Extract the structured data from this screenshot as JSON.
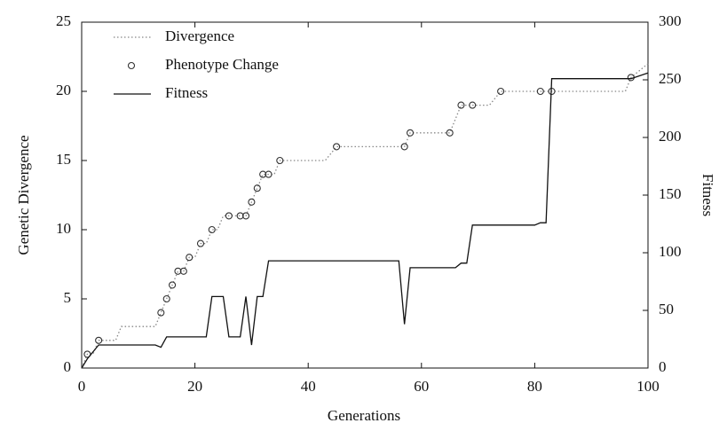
{
  "chart_data": {
    "type": "line",
    "x_label": "Generations",
    "y_label": "Genetic Divergence",
    "y2_label": "Fitness",
    "xlim": [
      0,
      100
    ],
    "xticks": [
      0,
      20,
      40,
      60,
      80,
      100
    ],
    "ylim": [
      0,
      25
    ],
    "yticks": [
      0,
      5,
      10,
      15,
      20,
      25
    ],
    "y2lim": [
      0,
      300
    ],
    "y2ticks": [
      0,
      50,
      100,
      150,
      200,
      250,
      300
    ],
    "legend": "upper left",
    "series": [
      {
        "name": "Divergence",
        "kind": "dotted",
        "color": "#888888",
        "x": [
          0,
          1,
          2,
          3,
          6,
          7,
          13,
          14,
          15,
          16,
          17,
          18,
          19,
          20,
          21,
          22,
          23,
          24,
          25,
          26,
          28,
          29,
          30,
          31,
          32,
          33,
          34,
          35,
          40,
          43,
          45,
          57,
          58,
          64,
          65,
          66,
          67,
          68,
          69,
          70,
          71,
          72,
          74,
          80,
          81,
          83,
          96,
          97,
          100
        ],
        "values": [
          0,
          1,
          1,
          2,
          2,
          3,
          3,
          4,
          5,
          6,
          7,
          7,
          8,
          8,
          9,
          9,
          10,
          10,
          11,
          11,
          11,
          11,
          12,
          13,
          14,
          14,
          14,
          15,
          15,
          15,
          16,
          16,
          17,
          17,
          17,
          18,
          19,
          19,
          19,
          19,
          19,
          19,
          20,
          20,
          20,
          20,
          20,
          21,
          22
        ]
      },
      {
        "name": "Phenotype Change",
        "kind": "markers",
        "color": "#333333",
        "x": [
          1,
          3,
          14,
          15,
          16,
          17,
          18,
          19,
          21,
          23,
          26,
          28,
          29,
          30,
          31,
          32,
          33,
          35,
          45,
          57,
          58,
          65,
          67,
          69,
          74,
          81,
          83,
          97
        ],
        "values": [
          1,
          2,
          4,
          5,
          6,
          7,
          7,
          8,
          9,
          10,
          11,
          11,
          11,
          12,
          13,
          14,
          14,
          15,
          16,
          16,
          17,
          17,
          19,
          19,
          20,
          20,
          20,
          21
        ]
      },
      {
        "name": "Fitness",
        "kind": "solid",
        "color": "#111111",
        "axis": "y2",
        "x": [
          0,
          1,
          3,
          13,
          14,
          15,
          22,
          23,
          25,
          26,
          28,
          29,
          30,
          31,
          32,
          33,
          56,
          57,
          58,
          66,
          67,
          68,
          69,
          80,
          81,
          82,
          83,
          97,
          100
        ],
        "values": [
          0,
          8,
          20,
          20,
          18,
          27,
          27,
          62,
          62,
          27,
          27,
          62,
          20,
          62,
          62,
          93,
          93,
          38,
          87,
          87,
          91,
          91,
          124,
          124,
          126,
          126,
          251,
          251,
          256
        ]
      }
    ]
  }
}
